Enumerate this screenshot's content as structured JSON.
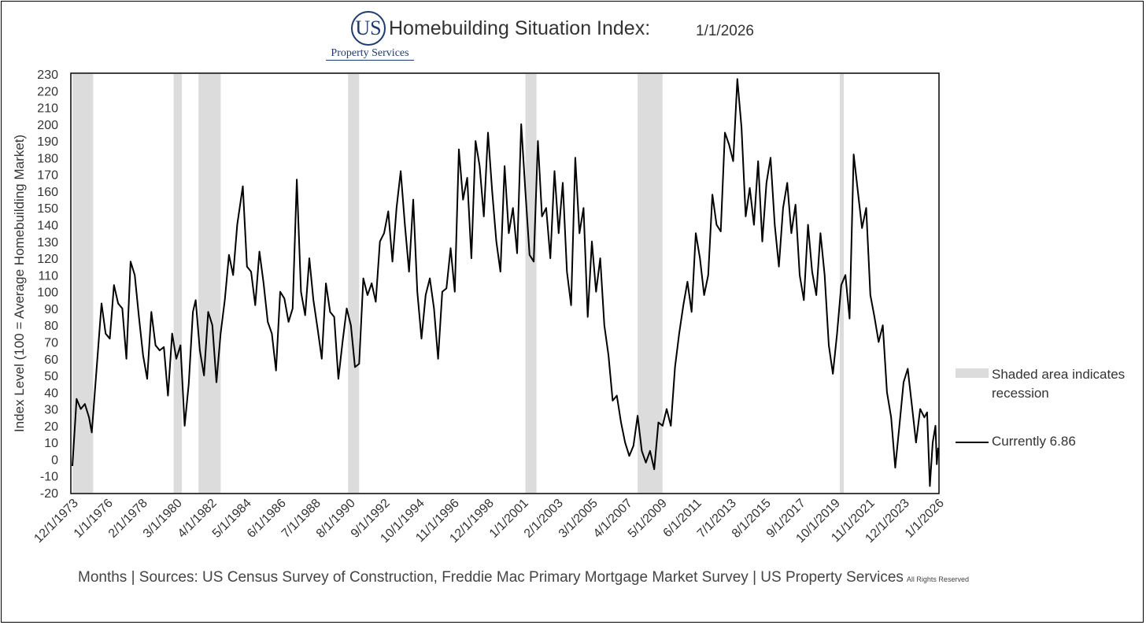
{
  "header": {
    "logo_mark": "US",
    "logo_text": "Property Services",
    "title": "Homebuilding Situation Index:",
    "date": "1/1/2026"
  },
  "legend": {
    "recession_label": "Shaded area indicates recession",
    "current_label": "Currently 6.86"
  },
  "footer": {
    "sources": "Months | Sources: US Census Survey of Construction, Freddie Mac Primary Mortgage Market Survey | US Property Services",
    "rights": "All Rights Reserved"
  },
  "colors": {
    "line": "#000000",
    "recession_shade": "#dcdcdc",
    "logo": "#1f3b6e"
  },
  "chart_data": {
    "type": "line",
    "title": "Homebuilding Situation Index:",
    "ylabel": "Index Level (100 = Average Homebuilding Market)",
    "ylim": [
      -20,
      230
    ],
    "yticks": [
      -20,
      -10,
      0,
      10,
      20,
      30,
      40,
      50,
      60,
      70,
      80,
      90,
      100,
      110,
      120,
      130,
      140,
      150,
      160,
      170,
      180,
      190,
      200,
      210,
      220,
      230
    ],
    "xlim": [
      "1973-12",
      "2026-01"
    ],
    "xtick_labels": [
      "12/1/1973",
      "1/1/1976",
      "2/1/1978",
      "3/1/1980",
      "4/1/1982",
      "5/1/1984",
      "6/1/1986",
      "7/1/1988",
      "8/1/1990",
      "9/1/1992",
      "10/1/1994",
      "11/1/1996",
      "12/1/1998",
      "1/1/2001",
      "2/1/2003",
      "3/1/2005",
      "4/1/2007",
      "5/1/2009",
      "6/1/2011",
      "7/1/2013",
      "8/1/2015",
      "9/1/2017",
      "10/1/2019",
      "11/1/2021",
      "12/1/2023",
      "1/1/2026"
    ],
    "recessions": [
      [
        "1973-12",
        "1975-03"
      ],
      [
        "1980-01",
        "1980-07"
      ],
      [
        "1981-07",
        "1982-11"
      ],
      [
        "1990-07",
        "1991-03"
      ],
      [
        "2001-03",
        "2001-11"
      ],
      [
        "2007-12",
        "2009-06"
      ],
      [
        "2020-02",
        "2020-04"
      ]
    ],
    "series": [
      {
        "name": "Currently 6.86",
        "points": [
          [
            "1973-12",
            -4
          ],
          [
            "1974-03",
            36
          ],
          [
            "1974-06",
            30
          ],
          [
            "1974-09",
            33
          ],
          [
            "1974-12",
            25
          ],
          [
            "1975-02",
            16
          ],
          [
            "1975-06",
            60
          ],
          [
            "1975-09",
            93
          ],
          [
            "1975-12",
            75
          ],
          [
            "1976-03",
            72
          ],
          [
            "1976-06",
            104
          ],
          [
            "1976-09",
            93
          ],
          [
            "1976-12",
            90
          ],
          [
            "1977-03",
            60
          ],
          [
            "1977-06",
            118
          ],
          [
            "1977-09",
            110
          ],
          [
            "1977-12",
            85
          ],
          [
            "1978-03",
            62
          ],
          [
            "1978-06",
            48
          ],
          [
            "1978-09",
            88
          ],
          [
            "1978-12",
            68
          ],
          [
            "1979-03",
            65
          ],
          [
            "1979-06",
            67
          ],
          [
            "1979-09",
            38
          ],
          [
            "1979-12",
            75
          ],
          [
            "1980-03",
            60
          ],
          [
            "1980-06",
            68
          ],
          [
            "1980-09",
            20
          ],
          [
            "1980-12",
            45
          ],
          [
            "1981-03",
            88
          ],
          [
            "1981-05",
            95
          ],
          [
            "1981-08",
            65
          ],
          [
            "1981-11",
            50
          ],
          [
            "1982-02",
            88
          ],
          [
            "1982-05",
            80
          ],
          [
            "1982-08",
            46
          ],
          [
            "1982-11",
            75
          ],
          [
            "1983-02",
            95
          ],
          [
            "1983-05",
            122
          ],
          [
            "1983-08",
            110
          ],
          [
            "1983-11",
            140
          ],
          [
            "1984-03",
            163
          ],
          [
            "1984-06",
            115
          ],
          [
            "1984-09",
            112
          ],
          [
            "1984-12",
            92
          ],
          [
            "1985-03",
            124
          ],
          [
            "1985-06",
            105
          ],
          [
            "1985-09",
            82
          ],
          [
            "1985-12",
            75
          ],
          [
            "1986-03",
            53
          ],
          [
            "1986-06",
            100
          ],
          [
            "1986-09",
            96
          ],
          [
            "1986-12",
            82
          ],
          [
            "1987-03",
            90
          ],
          [
            "1987-06",
            167
          ],
          [
            "1987-09",
            100
          ],
          [
            "1987-12",
            86
          ],
          [
            "1988-03",
            120
          ],
          [
            "1988-06",
            95
          ],
          [
            "1988-09",
            78
          ],
          [
            "1988-12",
            60
          ],
          [
            "1989-03",
            105
          ],
          [
            "1989-06",
            88
          ],
          [
            "1989-09",
            85
          ],
          [
            "1989-12",
            48
          ],
          [
            "1990-03",
            70
          ],
          [
            "1990-06",
            90
          ],
          [
            "1990-09",
            80
          ],
          [
            "1990-12",
            55
          ],
          [
            "1991-03",
            57
          ],
          [
            "1991-06",
            108
          ],
          [
            "1991-09",
            98
          ],
          [
            "1991-12",
            105
          ],
          [
            "1992-03",
            94
          ],
          [
            "1992-06",
            130
          ],
          [
            "1992-09",
            135
          ],
          [
            "1992-12",
            148
          ],
          [
            "1993-03",
            118
          ],
          [
            "1993-06",
            150
          ],
          [
            "1993-09",
            172
          ],
          [
            "1993-12",
            140
          ],
          [
            "1994-03",
            112
          ],
          [
            "1994-06",
            155
          ],
          [
            "1994-09",
            100
          ],
          [
            "1994-12",
            72
          ],
          [
            "1995-03",
            98
          ],
          [
            "1995-06",
            108
          ],
          [
            "1995-09",
            90
          ],
          [
            "1995-12",
            60
          ],
          [
            "1996-03",
            100
          ],
          [
            "1996-06",
            102
          ],
          [
            "1996-09",
            126
          ],
          [
            "1996-12",
            100
          ],
          [
            "1997-03",
            185
          ],
          [
            "1997-06",
            155
          ],
          [
            "1997-09",
            168
          ],
          [
            "1997-12",
            120
          ],
          [
            "1998-03",
            190
          ],
          [
            "1998-06",
            175
          ],
          [
            "1998-09",
            145
          ],
          [
            "1998-12",
            195
          ],
          [
            "1999-03",
            160
          ],
          [
            "1999-06",
            130
          ],
          [
            "1999-09",
            112
          ],
          [
            "1999-12",
            175
          ],
          [
            "2000-03",
            135
          ],
          [
            "2000-06",
            150
          ],
          [
            "2000-09",
            123
          ],
          [
            "2000-12",
            200
          ],
          [
            "2001-03",
            160
          ],
          [
            "2001-06",
            122
          ],
          [
            "2001-09",
            118
          ],
          [
            "2001-12",
            190
          ],
          [
            "2002-03",
            145
          ],
          [
            "2002-06",
            150
          ],
          [
            "2002-09",
            120
          ],
          [
            "2002-12",
            172
          ],
          [
            "2003-03",
            135
          ],
          [
            "2003-06",
            165
          ],
          [
            "2003-09",
            112
          ],
          [
            "2003-12",
            92
          ],
          [
            "2004-03",
            180
          ],
          [
            "2004-06",
            135
          ],
          [
            "2004-09",
            150
          ],
          [
            "2004-12",
            85
          ],
          [
            "2005-03",
            130
          ],
          [
            "2005-06",
            100
          ],
          [
            "2005-09",
            120
          ],
          [
            "2005-12",
            80
          ],
          [
            "2006-03",
            62
          ],
          [
            "2006-06",
            35
          ],
          [
            "2006-09",
            38
          ],
          [
            "2006-12",
            22
          ],
          [
            "2007-03",
            10
          ],
          [
            "2007-06",
            2
          ],
          [
            "2007-09",
            8
          ],
          [
            "2007-12",
            26
          ],
          [
            "2008-03",
            5
          ],
          [
            "2008-06",
            -2
          ],
          [
            "2008-09",
            5
          ],
          [
            "2008-12",
            -6
          ],
          [
            "2009-03",
            22
          ],
          [
            "2009-06",
            20
          ],
          [
            "2009-09",
            30
          ],
          [
            "2009-12",
            20
          ],
          [
            "2010-03",
            55
          ],
          [
            "2010-06",
            75
          ],
          [
            "2010-09",
            92
          ],
          [
            "2010-12",
            106
          ],
          [
            "2011-03",
            88
          ],
          [
            "2011-06",
            135
          ],
          [
            "2011-09",
            120
          ],
          [
            "2011-12",
            98
          ],
          [
            "2012-03",
            110
          ],
          [
            "2012-06",
            158
          ],
          [
            "2012-09",
            140
          ],
          [
            "2012-12",
            136
          ],
          [
            "2013-03",
            195
          ],
          [
            "2013-06",
            188
          ],
          [
            "2013-09",
            178
          ],
          [
            "2013-12",
            227
          ],
          [
            "2014-03",
            198
          ],
          [
            "2014-06",
            145
          ],
          [
            "2014-09",
            162
          ],
          [
            "2014-12",
            140
          ],
          [
            "2015-03",
            178
          ],
          [
            "2015-06",
            130
          ],
          [
            "2015-09",
            165
          ],
          [
            "2015-12",
            180
          ],
          [
            "2016-03",
            140
          ],
          [
            "2016-06",
            115
          ],
          [
            "2016-09",
            150
          ],
          [
            "2016-12",
            165
          ],
          [
            "2017-03",
            135
          ],
          [
            "2017-06",
            152
          ],
          [
            "2017-09",
            110
          ],
          [
            "2017-12",
            95
          ],
          [
            "2018-03",
            140
          ],
          [
            "2018-06",
            112
          ],
          [
            "2018-09",
            98
          ],
          [
            "2018-12",
            135
          ],
          [
            "2019-03",
            110
          ],
          [
            "2019-06",
            68
          ],
          [
            "2019-09",
            51
          ],
          [
            "2019-12",
            75
          ],
          [
            "2020-03",
            104
          ],
          [
            "2020-06",
            110
          ],
          [
            "2020-09",
            84
          ],
          [
            "2020-12",
            182
          ],
          [
            "2021-03",
            160
          ],
          [
            "2021-06",
            138
          ],
          [
            "2021-09",
            150
          ],
          [
            "2021-12",
            98
          ],
          [
            "2022-03",
            85
          ],
          [
            "2022-06",
            70
          ],
          [
            "2022-09",
            80
          ],
          [
            "2022-12",
            40
          ],
          [
            "2023-03",
            25
          ],
          [
            "2023-06",
            -5
          ],
          [
            "2023-09",
            20
          ],
          [
            "2023-12",
            46
          ],
          [
            "2024-03",
            54
          ],
          [
            "2024-06",
            32
          ],
          [
            "2024-09",
            10
          ],
          [
            "2024-12",
            30
          ],
          [
            "2025-03",
            25
          ],
          [
            "2025-05",
            28
          ],
          [
            "2025-07",
            -16
          ],
          [
            "2025-09",
            10
          ],
          [
            "2025-11",
            20
          ],
          [
            "2025-12",
            -3
          ],
          [
            "2026-01",
            6.86
          ]
        ]
      }
    ]
  }
}
